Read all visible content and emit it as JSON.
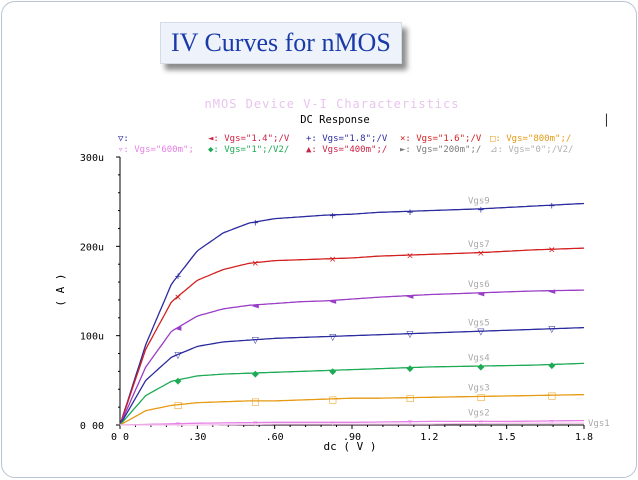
{
  "slide": {
    "title": "IV Curves for nMOS",
    "corner_glyph": "▏"
  },
  "chart_data": {
    "type": "line",
    "title": "nMOS Device V-I Characteristics",
    "subtitle": "DC Response",
    "xlabel": "dc ( V )",
    "ylabel": "( A )",
    "xlim": [
      0,
      1.8
    ],
    "ylim": [
      0,
      0.0003
    ],
    "x_tick_labels": [
      "0 0",
      ".30",
      ".60",
      ".90",
      "1.2",
      "1.5",
      "1.8"
    ],
    "x_tick_values": [
      0,
      0.3,
      0.6,
      0.9,
      1.2,
      1.5,
      1.8
    ],
    "y_tick_labels": [
      "0 00",
      "100u",
      "200u",
      "300u"
    ],
    "y_tick_values": [
      0,
      0.0001,
      0.0002,
      0.0003
    ],
    "grid": false,
    "legend_placement": "top",
    "legend_rows": [
      [
        {
          "marker": "▽",
          "text": ":",
          "color": "#2b2b9f"
        },
        {
          "marker": "◄",
          "text": ": Vgs=\"1.4\";/V",
          "color": "#cc2244"
        },
        {
          "marker": "+",
          "text": ": Vgs=\"1.8\";/V",
          "color": "#2b2b9f"
        },
        {
          "marker": "×",
          "text": ": Vgs=\"1.6\";/V",
          "color": "#d32020"
        },
        {
          "marker": "□",
          "text": ": Vgs=\"800m\";/",
          "color": "#e69a12"
        }
      ],
      [
        {
          "marker": "▿",
          "text": ": Vgs=\"600m\";",
          "color": "#e680e6"
        },
        {
          "marker": "◆",
          "text": ": Vgs=\"1\";/V2/",
          "color": "#1daa55"
        },
        {
          "marker": "▲",
          "text": ": Vgs=\"400m\";/",
          "color": "#cc2244"
        },
        {
          "marker": "►",
          "text": ": Vgs=\"200m\";/",
          "color": "#7a7a7a"
        },
        {
          "marker": "⊿",
          "text": ": Vgs=\"0\";/V2/",
          "color": "#b0b0b0"
        }
      ]
    ],
    "series": [
      {
        "name": "Vgs9",
        "color": "#2b2b9f",
        "marker": "+",
        "x": [
          0,
          0.1,
          0.2,
          0.3,
          0.4,
          0.5,
          0.6,
          0.7,
          0.8,
          0.9,
          1.0,
          1.2,
          1.4,
          1.6,
          1.8
        ],
        "y": [
          0,
          9e-05,
          0.000158,
          0.000195,
          0.000215,
          0.000226,
          0.000231,
          0.000233,
          0.000235,
          0.000236,
          0.000238,
          0.00024,
          0.000242,
          0.000245,
          0.000248
        ]
      },
      {
        "name": "Vgs7",
        "color": "#d32020",
        "marker": "×",
        "x": [
          0,
          0.1,
          0.2,
          0.3,
          0.4,
          0.5,
          0.6,
          0.7,
          0.8,
          0.9,
          1.0,
          1.2,
          1.4,
          1.6,
          1.8
        ],
        "y": [
          0,
          8.5e-05,
          0.000138,
          0.000162,
          0.000174,
          0.000181,
          0.000184,
          0.000185,
          0.000186,
          0.000187,
          0.000189,
          0.000191,
          0.000193,
          0.000196,
          0.000198
        ]
      },
      {
        "name": "Vgs6",
        "color": "#9a3dc7",
        "marker": "◄",
        "x": [
          0,
          0.1,
          0.2,
          0.3,
          0.4,
          0.5,
          0.6,
          0.7,
          0.8,
          0.9,
          1.0,
          1.2,
          1.4,
          1.6,
          1.8
        ],
        "y": [
          0,
          6.5e-05,
          0.000105,
          0.000122,
          0.00013,
          0.000134,
          0.000136,
          0.000138,
          0.000139,
          0.000141,
          0.000143,
          0.000146,
          0.000148,
          0.00015,
          0.000151
        ]
      },
      {
        "name": "Vgs5",
        "color": "#2b2b9f",
        "marker": "▽",
        "x": [
          0,
          0.1,
          0.2,
          0.3,
          0.4,
          0.5,
          0.6,
          0.7,
          0.8,
          0.9,
          1.0,
          1.2,
          1.4,
          1.6,
          1.8
        ],
        "y": [
          0,
          5e-05,
          7.6e-05,
          8.8e-05,
          9.3e-05,
          9.5e-05,
          9.7e-05,
          9.8e-05,
          9.9e-05,
          0.0001,
          0.000101,
          0.000103,
          0.000105,
          0.000107,
          0.000109
        ]
      },
      {
        "name": "Vgs4",
        "color": "#1daa55",
        "marker": "◆",
        "x": [
          0,
          0.1,
          0.2,
          0.3,
          0.4,
          0.5,
          0.6,
          0.7,
          0.8,
          0.9,
          1.0,
          1.2,
          1.4,
          1.6,
          1.8
        ],
        "y": [
          0,
          3.3e-05,
          4.9e-05,
          5.5e-05,
          5.7e-05,
          5.8e-05,
          5.9e-05,
          6e-05,
          6.1e-05,
          6.2e-05,
          6.3e-05,
          6.5e-05,
          6.6e-05,
          6.7e-05,
          6.9e-05
        ]
      },
      {
        "name": "Vgs3",
        "color": "#e69a12",
        "marker": "□",
        "x": [
          0,
          0.1,
          0.2,
          0.3,
          0.4,
          0.5,
          0.6,
          0.7,
          0.8,
          0.9,
          1.0,
          1.2,
          1.4,
          1.6,
          1.8
        ],
        "y": [
          0,
          1.6e-05,
          2.2e-05,
          2.5e-05,
          2.6e-05,
          2.7e-05,
          2.7e-05,
          2.8e-05,
          2.9e-05,
          3e-05,
          3e-05,
          3.1e-05,
          3.2e-05,
          3.3e-05,
          3.4e-05
        ]
      },
      {
        "name": "Vgs2",
        "color": "#e680e6",
        "marker": "▿",
        "x": [
          0,
          0.3,
          0.6,
          0.9,
          1.2,
          1.5,
          1.8
        ],
        "y": [
          0,
          2e-06,
          3e-06,
          3e-06,
          4e-06,
          4e-06,
          5e-06
        ]
      },
      {
        "name": "Vgs1",
        "color": "#f2c3ea",
        "marker": "",
        "x": [
          0,
          0.3,
          0.6,
          0.9,
          1.2,
          1.5,
          1.8
        ],
        "y": [
          0,
          0.0,
          1e-06,
          1e-06,
          1e-06,
          2e-06,
          2e-06
        ]
      }
    ],
    "marker_x": [
      0.225,
      0.525,
      0.825,
      1.125,
      1.4,
      1.675
    ]
  }
}
